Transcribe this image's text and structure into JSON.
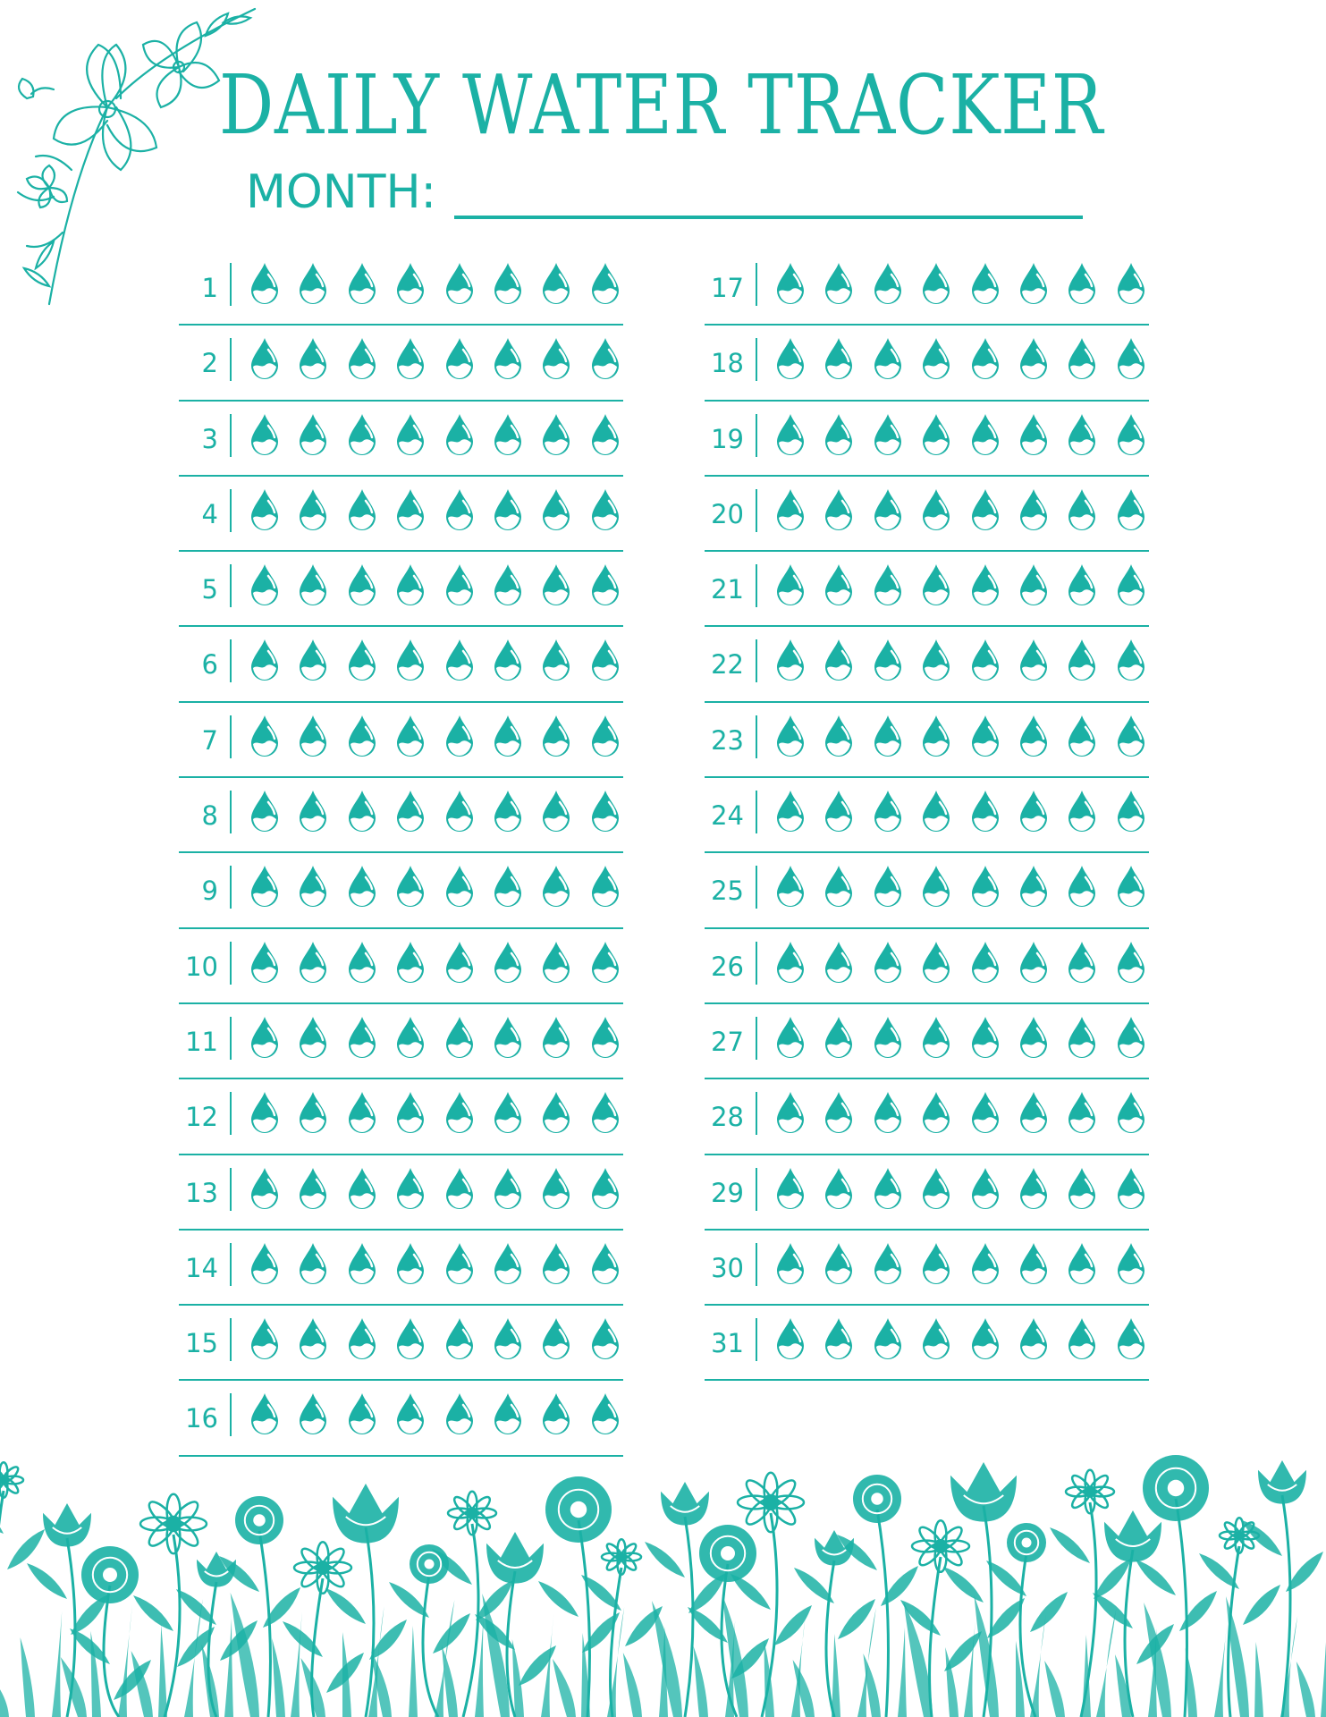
{
  "header": {
    "title": "DAILY WATER TRACKER",
    "month_label": "MONTH:"
  },
  "tracker": {
    "drops_per_day": 8,
    "left_days": [
      "1",
      "2",
      "3",
      "4",
      "5",
      "6",
      "7",
      "8",
      "9",
      "10",
      "11",
      "12",
      "13",
      "14",
      "15",
      "16"
    ],
    "right_days": [
      "17",
      "18",
      "19",
      "20",
      "21",
      "22",
      "23",
      "24",
      "25",
      "26",
      "27",
      "28",
      "29",
      "30",
      "31"
    ]
  },
  "icons": {
    "drop": "water-drop-icon",
    "corner_flowers": "floral-corner-illustration",
    "bottom_flowers": "wildflower-border-illustration"
  },
  "colors": {
    "accent": "#1bb1a5",
    "background": "#ffffff"
  }
}
